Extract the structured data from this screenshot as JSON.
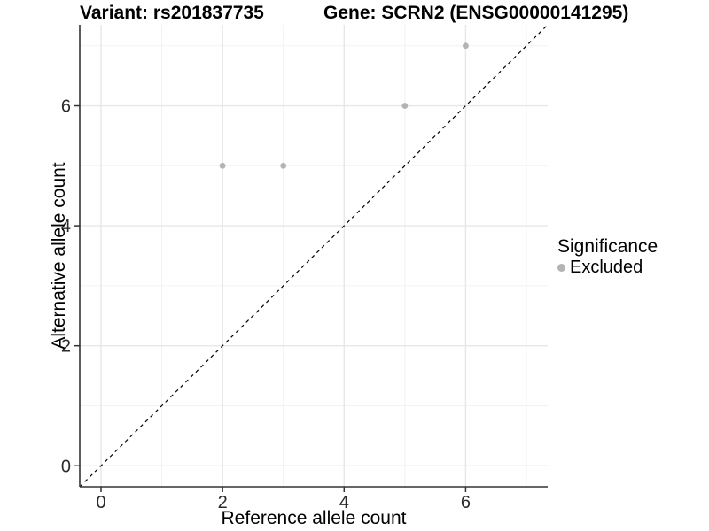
{
  "chart_data": {
    "type": "scatter",
    "titles": {
      "left": "Variant: rs201837735",
      "right": "Gene: SCRN2 (ENSG00000141295)"
    },
    "xlabel": "Reference allele count",
    "ylabel": "Alternative allele count",
    "xlim": [
      -0.35,
      7.35
    ],
    "ylim": [
      -0.35,
      7.35
    ],
    "x_major_ticks": [
      0,
      2,
      4,
      6
    ],
    "y_major_ticks": [
      0,
      2,
      4,
      6
    ],
    "x_minor_gridlines": [
      1,
      3,
      5,
      7
    ],
    "y_minor_gridlines": [
      1,
      3,
      5,
      7
    ],
    "grid": "major+minor",
    "legend_position": "right",
    "series": [
      {
        "name": "Excluded",
        "marker": "circle",
        "color": "#b4b4b4",
        "points": [
          [
            2,
            5
          ],
          [
            3,
            5
          ],
          [
            5,
            6
          ],
          [
            6,
            7
          ]
        ]
      }
    ],
    "reference_line": {
      "kind": "identity y=x",
      "style": "dashed",
      "color": "#000000"
    }
  },
  "legend": {
    "title": "Significance",
    "items": [
      {
        "label": "Excluded",
        "marker": "circle",
        "color": "#b4b4b4"
      }
    ]
  },
  "colors": {
    "background": "#ffffff",
    "axis_line": "#333333",
    "tick_label": "#2b2b2b",
    "grid_major": "#e7e7e7",
    "grid_minor": "#f2f2f2",
    "point": "#b4b4b4",
    "dashed_line": "#000000"
  }
}
